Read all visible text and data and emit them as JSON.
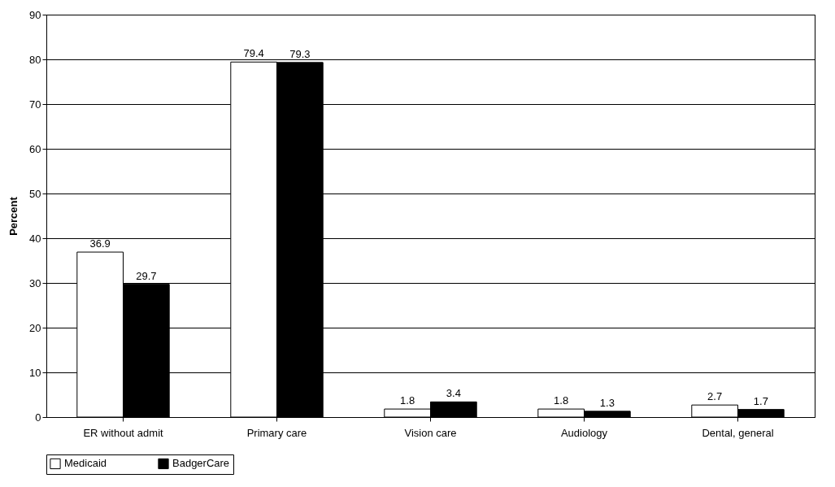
{
  "chart_data": {
    "type": "bar",
    "ylabel": "Percent",
    "categories": [
      "ER without admit",
      "Primary care",
      "Vision care",
      "Audiology",
      "Dental, general"
    ],
    "series": [
      {
        "name": "Medicaid",
        "color": "#ffffff",
        "values": [
          36.9,
          79.4,
          1.8,
          1.8,
          2.7
        ]
      },
      {
        "name": "BadgerCare",
        "color": "#000000",
        "values": [
          29.7,
          79.3,
          3.4,
          1.3,
          1.7
        ]
      }
    ],
    "ylim": [
      0,
      90
    ],
    "yticks": [
      0,
      10,
      20,
      30,
      40,
      50,
      60,
      70,
      80,
      90
    ],
    "grid": "y",
    "legend": "bottom",
    "data_labels": true
  }
}
